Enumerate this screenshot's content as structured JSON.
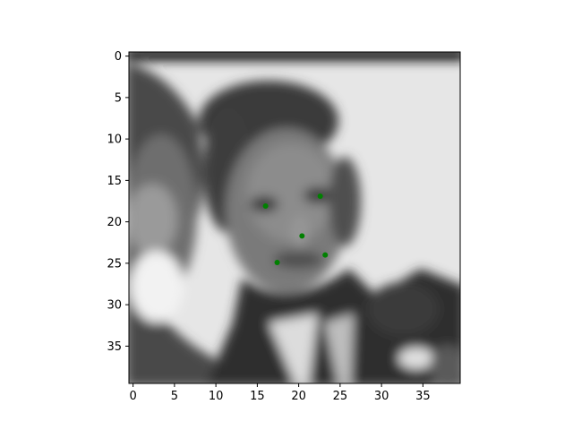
{
  "chart_data": {
    "type": "scatter",
    "description_kind": "image plot with overlaid landmark points",
    "image_extent": {
      "x": [
        -0.5,
        39.5
      ],
      "y": [
        39.5,
        -0.5
      ]
    },
    "x_axis": {
      "ticks": [
        0,
        5,
        10,
        15,
        20,
        25,
        30,
        35
      ],
      "tick_labels": [
        "0",
        "5",
        "10",
        "15",
        "20",
        "25",
        "30",
        "35"
      ],
      "xlim": [
        -0.5,
        39.5
      ]
    },
    "y_axis": {
      "ticks": [
        0,
        5,
        10,
        15,
        20,
        25,
        30,
        35
      ],
      "tick_labels": [
        "0",
        "5",
        "10",
        "15",
        "20",
        "25",
        "30",
        "35"
      ],
      "ylim": [
        39.5,
        -0.5
      ],
      "inverted": true
    },
    "grid": false,
    "colormap": "gray",
    "series": [
      {
        "marker_color": "#008000",
        "points": [
          {
            "x": 16.0,
            "y": 18.1
          },
          {
            "x": 22.6,
            "y": 16.9
          },
          {
            "x": 20.4,
            "y": 21.7
          },
          {
            "x": 17.4,
            "y": 24.9
          },
          {
            "x": 23.2,
            "y": 24.0
          }
        ]
      }
    ]
  }
}
